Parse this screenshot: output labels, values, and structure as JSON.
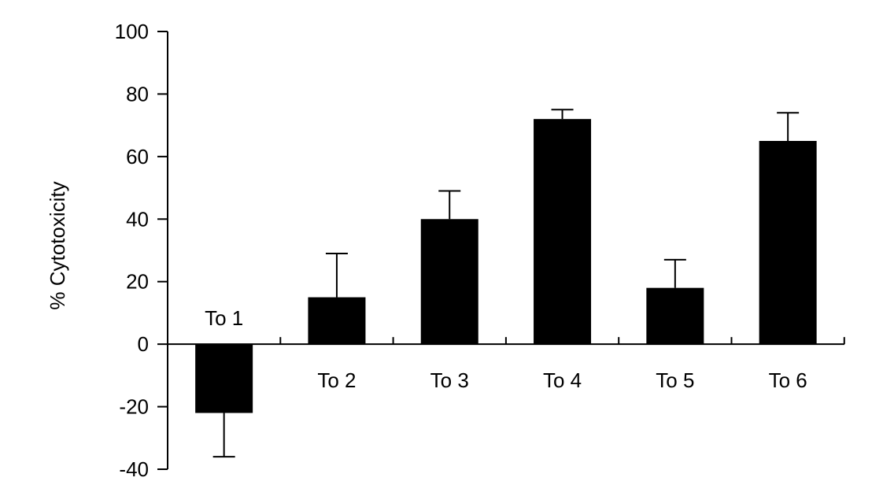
{
  "chart_data": {
    "type": "bar",
    "title": "",
    "xlabel": "",
    "ylabel": "% Cytotoxicity",
    "categories": [
      "To 1",
      "To 2",
      "To 3",
      "To 4",
      "To 5",
      "To 6"
    ],
    "values": [
      -22,
      15,
      40,
      72,
      18,
      65
    ],
    "error_bars": [
      14,
      14,
      9,
      3,
      9,
      9
    ],
    "ylim": [
      -40,
      100
    ],
    "yticks": [
      -40,
      -20,
      0,
      20,
      40,
      60,
      80,
      100
    ],
    "ytick_labels": [
      "-40",
      "-20",
      "0",
      "20",
      "40",
      "60",
      "80",
      "100"
    ],
    "grid": false,
    "legend": "none",
    "bar_color": "#000000"
  }
}
